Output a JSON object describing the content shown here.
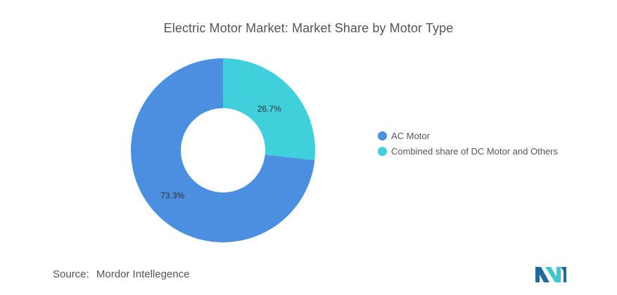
{
  "chart_data": {
    "type": "pie",
    "title": "Electric Motor Market: Market Share by Motor Type",
    "donut": true,
    "categories": [
      "AC Motor",
      "Combined share of DC Motor and Others"
    ],
    "values": [
      73.3,
      26.7
    ],
    "data_labels": [
      "73.3%",
      "26.7%"
    ],
    "colors": [
      "#4a8fe0",
      "#3fd0db"
    ],
    "legend_position": "right"
  },
  "footer": {
    "source_label": "Source:",
    "source_value": "Mordor Intellegence"
  },
  "logo": {
    "icon": "mordor-intelligence-logo-icon",
    "colors": [
      "#1f6a9e",
      "#3fc6cf"
    ]
  }
}
